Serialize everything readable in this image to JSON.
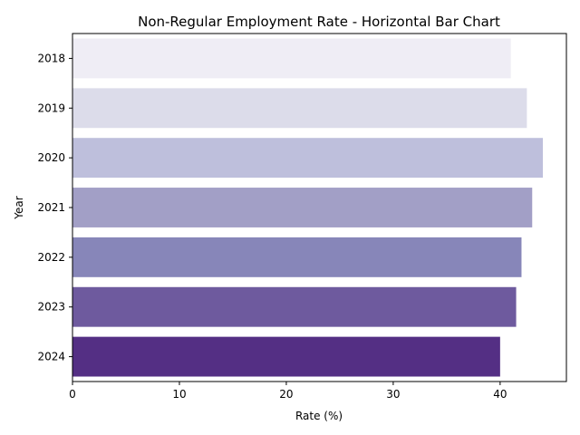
{
  "chart_data": {
    "type": "bar",
    "orientation": "horizontal",
    "title": "Non-Regular Employment Rate - Horizontal Bar Chart",
    "xlabel": "Rate (%)",
    "ylabel": "Year",
    "categories": [
      "2018",
      "2019",
      "2020",
      "2021",
      "2022",
      "2023",
      "2024"
    ],
    "values": [
      41.0,
      42.5,
      44.0,
      43.0,
      42.0,
      41.5,
      40.0
    ],
    "xlim": [
      0,
      46.2
    ],
    "xticks": [
      0,
      10,
      20,
      30,
      40
    ],
    "colors": [
      "#efedf5",
      "#dcdcea",
      "#bebfdc",
      "#a29fc6",
      "#8786b9",
      "#6e5a9e",
      "#542f84"
    ],
    "grid": false,
    "legend": "none"
  }
}
